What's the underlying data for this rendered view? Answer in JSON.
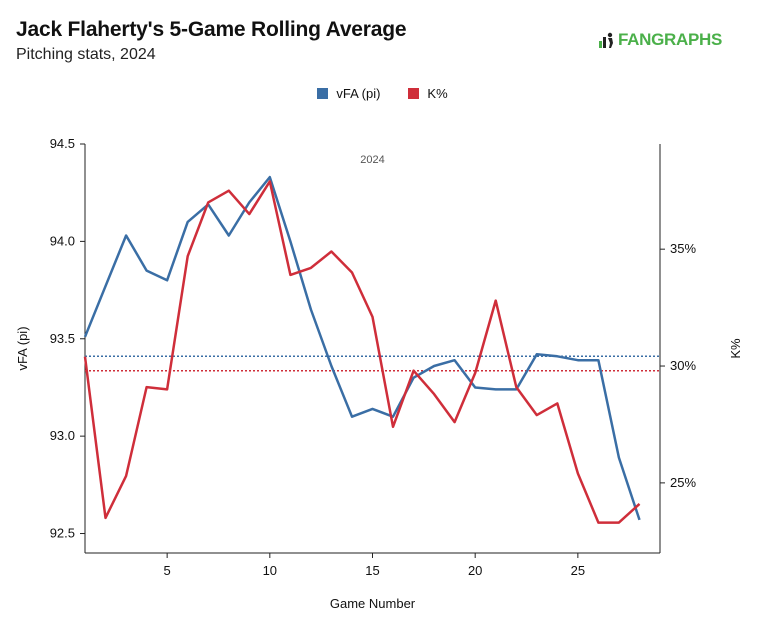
{
  "header": {
    "title": "Jack Flaherty's 5-Game Rolling Average",
    "subtitle": "Pitching stats, 2024",
    "brand": "FANGRAPHS"
  },
  "colors": {
    "vfa": "#3a6ea5",
    "kpct": "#cf2e3a",
    "brand": "#4bb04a"
  },
  "chart_data": {
    "type": "line",
    "title": "Jack Flaherty's 5-Game Rolling Average",
    "subtitle": "Pitching stats, 2024",
    "annotation": "2024",
    "xlabel": "Game Number",
    "ylabel_left": "vFA (pi)",
    "ylabel_right": "K%",
    "xlim": [
      1,
      29
    ],
    "x_ticks": [
      5,
      10,
      15,
      20,
      25
    ],
    "ylim_left": [
      92.4,
      94.5
    ],
    "y_ticks_left": [
      "92.5",
      "93.0",
      "93.5",
      "94.0",
      "94.5"
    ],
    "ylim_right": [
      22,
      39.5
    ],
    "y_ticks_right": [
      25,
      30,
      35
    ],
    "y_ticks_right_labels": [
      "25%",
      "30%",
      "35%"
    ],
    "series": [
      {
        "name": "vFA (pi)",
        "axis": "left",
        "x": [
          1,
          2,
          3,
          4,
          5,
          6,
          7,
          8,
          9,
          10,
          11,
          12,
          13,
          14,
          15,
          16,
          17,
          18,
          19,
          20,
          21,
          22,
          23,
          24,
          25,
          26,
          27,
          28
        ],
        "values": [
          93.51,
          93.77,
          94.03,
          93.85,
          93.8,
          94.1,
          94.19,
          94.03,
          94.2,
          94.33,
          94.0,
          93.65,
          93.36,
          93.1,
          93.14,
          93.1,
          93.3,
          93.36,
          93.39,
          93.25,
          93.24,
          93.24,
          93.42,
          93.41,
          93.39,
          93.39,
          92.89,
          92.57
        ],
        "mean": 93.41
      },
      {
        "name": "K%",
        "axis": "right",
        "x": [
          1,
          2,
          3,
          4,
          5,
          6,
          7,
          8,
          9,
          10,
          11,
          12,
          13,
          14,
          15,
          16,
          17,
          18,
          19,
          20,
          21,
          22,
          23,
          24,
          25,
          26,
          27,
          28
        ],
        "values": [
          30.4,
          23.5,
          25.3,
          29.1,
          29.0,
          34.7,
          37.0,
          37.5,
          36.5,
          37.9,
          33.9,
          34.2,
          34.9,
          34.0,
          32.1,
          27.4,
          29.8,
          28.8,
          27.6,
          29.7,
          32.8,
          29.1,
          27.9,
          28.4,
          25.4,
          23.3,
          23.3,
          24.1
        ],
        "mean": 29.8
      }
    ]
  }
}
